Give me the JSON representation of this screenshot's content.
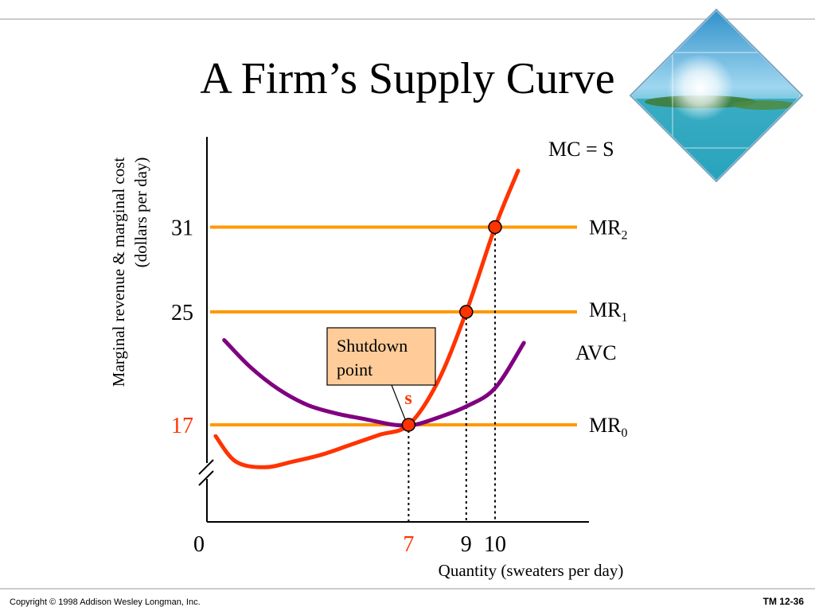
{
  "slide": {
    "title": "A Firm’s Supply Curve",
    "footer_left": "Copyright © 1998 Addison Wesley Longman, Inc.",
    "footer_right": "TM 12-36"
  },
  "colors": {
    "mr_lines": "#FF9900",
    "mc_curve": "#FF3300",
    "avc_curve": "#800080",
    "points": "#FF3300",
    "highlight_text": "#FF3300",
    "callout_fill": "#FFCC99",
    "rule": "#999999"
  },
  "decor": {
    "corner_image": "tropical-island-photo"
  },
  "chart_data": {
    "type": "line",
    "title": "",
    "ylabel_line1": "Marginal revenue & marginal cost",
    "ylabel_line2": "(dollars per day)",
    "xlabel": "Quantity (sweaters per day)",
    "x_ticks": [
      {
        "value": 0,
        "label": "0",
        "highlight": false
      },
      {
        "value": 7,
        "label": "7",
        "highlight": true
      },
      {
        "value": 9,
        "label": "9",
        "highlight": false
      },
      {
        "value": 10,
        "label": "10",
        "highlight": false
      }
    ],
    "y_ticks": [
      {
        "value": 17,
        "label": "17",
        "highlight": true
      },
      {
        "value": 25,
        "label": "25",
        "highlight": false
      },
      {
        "value": 31,
        "label": "31",
        "highlight": false
      }
    ],
    "y_axis_break": true,
    "mr_lines": [
      {
        "name": "MR",
        "sub": "0",
        "y": 17
      },
      {
        "name": "MR",
        "sub": "1",
        "y": 25
      },
      {
        "name": "MR",
        "sub": "2",
        "y": 31
      }
    ],
    "series": [
      {
        "name": "MC = S",
        "color": "#FF3300",
        "points": [
          [
            0.3,
            16.2
          ],
          [
            1.0,
            14.4
          ],
          [
            2.0,
            14.0
          ],
          [
            3.0,
            14.4
          ],
          [
            4.0,
            14.9
          ],
          [
            5.0,
            15.6
          ],
          [
            6.0,
            16.3
          ],
          [
            7.0,
            17.0
          ],
          [
            8.0,
            20.0
          ],
          [
            9.0,
            25.0
          ],
          [
            10.0,
            31.0
          ],
          [
            10.8,
            35.0
          ]
        ]
      },
      {
        "name": "AVC",
        "color": "#800080",
        "points": [
          [
            0.6,
            23.0
          ],
          [
            1.5,
            21.1
          ],
          [
            2.5,
            19.5
          ],
          [
            3.5,
            18.4
          ],
          [
            4.5,
            17.8
          ],
          [
            5.5,
            17.4
          ],
          [
            6.5,
            17.0
          ],
          [
            7.2,
            17.0
          ],
          [
            8.0,
            17.5
          ],
          [
            9.0,
            18.3
          ],
          [
            10.0,
            19.6
          ],
          [
            11.0,
            22.8
          ]
        ]
      }
    ],
    "highlight_points": [
      {
        "x": 7,
        "y": 17,
        "label": "s"
      },
      {
        "x": 9,
        "y": 25,
        "label": ""
      },
      {
        "x": 10,
        "y": 31,
        "label": ""
      }
    ],
    "annotation": {
      "text_line1": "Shutdown",
      "text_line2": "point",
      "points_to": [
        7,
        17
      ]
    }
  }
}
